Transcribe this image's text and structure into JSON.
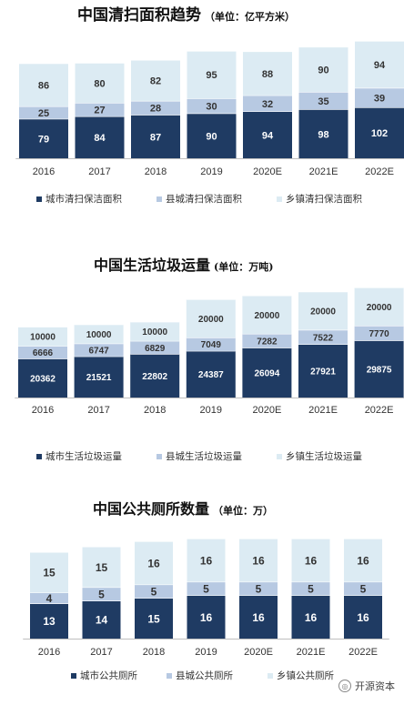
{
  "colors": {
    "city": "#1f3b63",
    "county": "#b7c9e2",
    "town": "#dcebf3",
    "axis": "#bfbfbf"
  },
  "chart_data": [
    {
      "type": "bar",
      "stacked": true,
      "title": "中国清扫面积趋势",
      "unit": "（单位：亿平方米）",
      "categories": [
        "2016",
        "2017",
        "2018",
        "2019",
        "2020E",
        "2021E",
        "2022E"
      ],
      "series": [
        {
          "name": "城市清扫保洁面积",
          "color_key": "city",
          "values": [
            79,
            84,
            87,
            90,
            94,
            98,
            102
          ]
        },
        {
          "name": "县城清扫保洁面积",
          "color_key": "county",
          "values": [
            25,
            27,
            28,
            30,
            32,
            35,
            39
          ]
        },
        {
          "name": "乡镇清扫保洁面积",
          "color_key": "town",
          "values": [
            86,
            80,
            82,
            95,
            88,
            90,
            94
          ]
        }
      ],
      "legend_position": "bottom"
    },
    {
      "type": "bar",
      "stacked": true,
      "title": "中国生活垃圾运量",
      "unit": "(单位：万吨)",
      "categories": [
        "2016",
        "2017",
        "2018",
        "2019",
        "2020E",
        "2021E",
        "2022E"
      ],
      "series": [
        {
          "name": "城市生活垃圾运量",
          "color_key": "city",
          "values": [
            20362,
            21521,
            22802,
            24387,
            26094,
            27921,
            29875
          ]
        },
        {
          "name": "县城生活垃圾运量",
          "color_key": "county",
          "values": [
            6666,
            6747,
            6829,
            7049,
            7282,
            7522,
            7770
          ]
        },
        {
          "name": "乡镇生活垃圾运量",
          "color_key": "town",
          "values": [
            10000,
            10000,
            10000,
            20000,
            20000,
            20000,
            20000
          ]
        }
      ],
      "legend_position": "bottom"
    },
    {
      "type": "bar",
      "stacked": true,
      "title": "中国公共厕所数量",
      "unit": "（单位：万）",
      "categories": [
        "2016",
        "2017",
        "2018",
        "2019",
        "2020E",
        "2021E",
        "2022E"
      ],
      "series": [
        {
          "name": "城市公共厕所",
          "color_key": "city",
          "values": [
            13,
            14,
            15,
            16,
            16,
            16,
            16
          ]
        },
        {
          "name": "县城公共厕所",
          "color_key": "county",
          "values": [
            4,
            5,
            5,
            5,
            5,
            5,
            5
          ]
        },
        {
          "name": "乡镇公共厕所",
          "color_key": "town",
          "values": [
            15,
            15,
            16,
            16,
            16,
            16,
            16
          ]
        }
      ],
      "legend_position": "bottom"
    }
  ],
  "watermark": {
    "text": "开源资本"
  }
}
